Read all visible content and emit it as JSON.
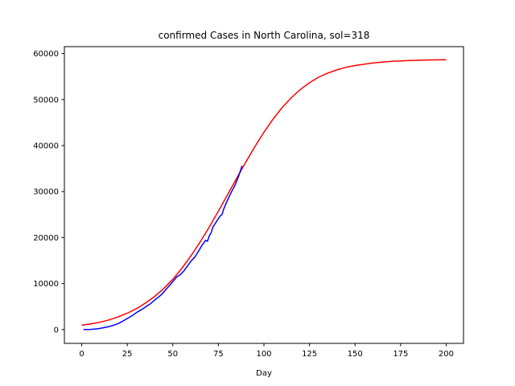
{
  "chart_data": {
    "type": "line",
    "title": "confirmed Cases in North Carolina, sol=318",
    "xlabel": "Day",
    "ylabel": "",
    "xlim": [
      -9.5,
      209.5
    ],
    "ylim": [
      -3000,
      61500
    ],
    "xticks": [
      0,
      25,
      50,
      75,
      100,
      125,
      150,
      175,
      200
    ],
    "yticks": [
      0,
      10000,
      20000,
      30000,
      40000,
      50000,
      60000
    ],
    "grid": false,
    "series": [
      {
        "color": "#ff0000",
        "points": [
          [
            0,
            950
          ],
          [
            5,
            1230
          ],
          [
            10,
            1600
          ],
          [
            15,
            2100
          ],
          [
            20,
            2750
          ],
          [
            25,
            3550
          ],
          [
            30,
            4550
          ],
          [
            35,
            5750
          ],
          [
            40,
            7200
          ],
          [
            45,
            8900
          ],
          [
            50,
            10950
          ],
          [
            55,
            13350
          ],
          [
            60,
            16050
          ],
          [
            65,
            19050
          ],
          [
            70,
            22300
          ],
          [
            75,
            25750
          ],
          [
            80,
            29300
          ],
          [
            85,
            32850
          ],
          [
            90,
            36400
          ],
          [
            95,
            39750
          ],
          [
            100,
            42900
          ],
          [
            105,
            45750
          ],
          [
            110,
            48250
          ],
          [
            115,
            50400
          ],
          [
            120,
            52200
          ],
          [
            125,
            53650
          ],
          [
            130,
            54850
          ],
          [
            135,
            55750
          ],
          [
            140,
            56450
          ],
          [
            145,
            57000
          ],
          [
            150,
            57400
          ],
          [
            160,
            57950
          ],
          [
            170,
            58300
          ],
          [
            180,
            58500
          ],
          [
            190,
            58600
          ],
          [
            200,
            58650
          ]
        ]
      },
      {
        "color": "#0000ff",
        "points": [
          [
            1,
            0
          ],
          [
            5,
            50
          ],
          [
            8,
            150
          ],
          [
            10,
            250
          ],
          [
            12,
            400
          ],
          [
            15,
            650
          ],
          [
            18,
            1000
          ],
          [
            20,
            1300
          ],
          [
            22,
            1700
          ],
          [
            25,
            2400
          ],
          [
            28,
            3100
          ],
          [
            30,
            3700
          ],
          [
            33,
            4400
          ],
          [
            35,
            4900
          ],
          [
            38,
            5700
          ],
          [
            40,
            6400
          ],
          [
            42,
            7000
          ],
          [
            44,
            7700
          ],
          [
            46,
            8600
          ],
          [
            48,
            9500
          ],
          [
            50,
            10400
          ],
          [
            52,
            11400
          ],
          [
            54,
            11900
          ],
          [
            56,
            12700
          ],
          [
            58,
            13800
          ],
          [
            60,
            14900
          ],
          [
            62,
            15700
          ],
          [
            64,
            17000
          ],
          [
            66,
            18300
          ],
          [
            68,
            19400
          ],
          [
            69,
            19200
          ],
          [
            70,
            20400
          ],
          [
            71,
            21000
          ],
          [
            72,
            22300
          ],
          [
            74,
            23500
          ],
          [
            76,
            24700
          ],
          [
            77,
            25000
          ],
          [
            78,
            26300
          ],
          [
            80,
            28100
          ],
          [
            82,
            29800
          ],
          [
            84,
            31300
          ],
          [
            86,
            33200
          ],
          [
            88,
            35600
          ]
        ]
      }
    ]
  }
}
